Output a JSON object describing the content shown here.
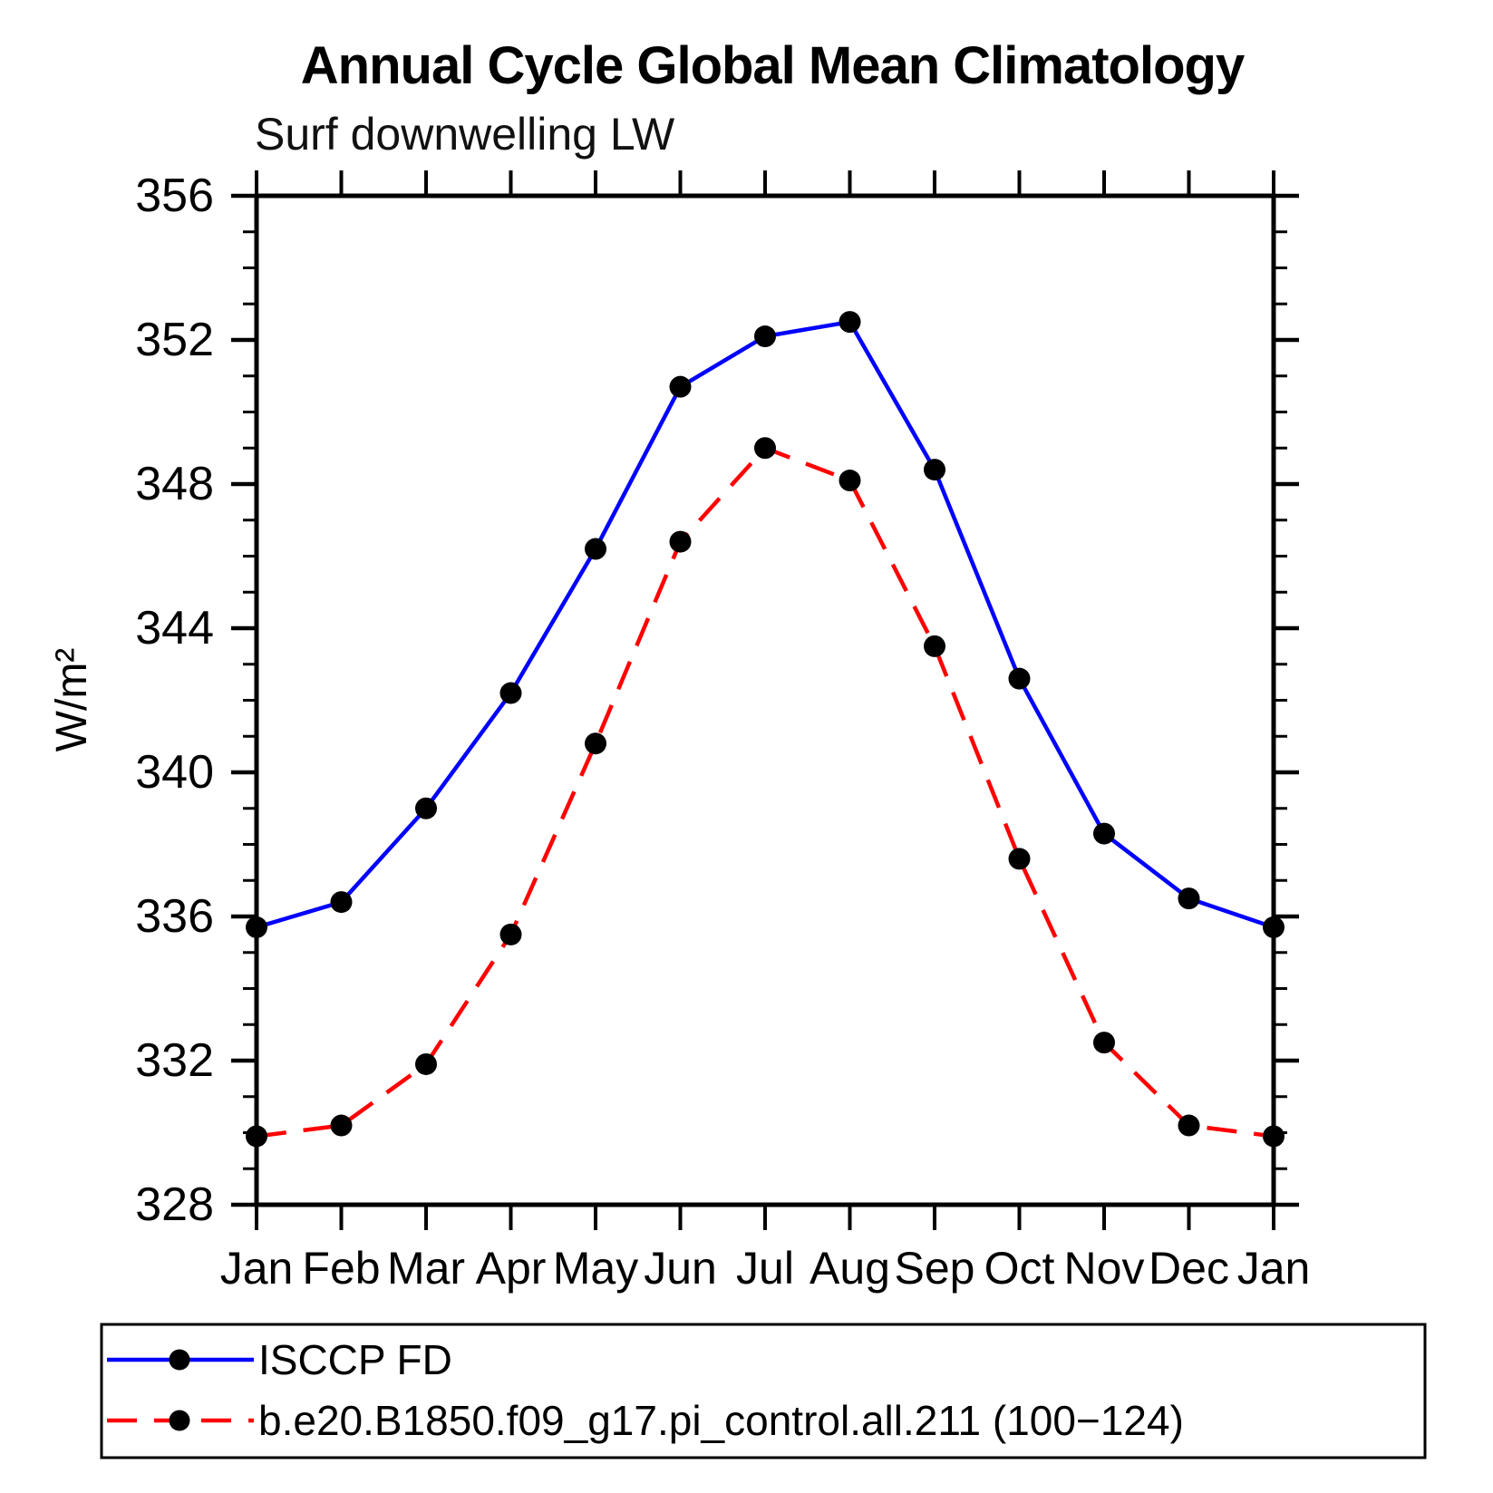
{
  "chart_data": {
    "type": "line",
    "title": "Annual Cycle Global Mean Climatology",
    "subtitle": "Surf downwelling LW",
    "ylabel": "W/m²",
    "xlabel": "",
    "x_categories": [
      "Jan",
      "Feb",
      "Mar",
      "Apr",
      "May",
      "Jun",
      "Jul",
      "Aug",
      "Sep",
      "Oct",
      "Nov",
      "Dec",
      "Jan"
    ],
    "ylim": [
      328,
      356
    ],
    "y_major_tick_step": 4,
    "y_minor_tick_step": 1,
    "y_major_tick_labels": [
      "328",
      "332",
      "336",
      "340",
      "344",
      "348",
      "352",
      "356"
    ],
    "grid": false,
    "legend_position": "bottom",
    "background_color": "#ffffff",
    "axis_color": "#000000",
    "series": [
      {
        "name": "ISCCP FD",
        "color": "#0000ff",
        "line_style": "solid",
        "marker": "circle",
        "marker_color": "#000000",
        "values": [
          335.7,
          336.4,
          339.0,
          342.2,
          346.2,
          350.7,
          352.1,
          352.5,
          348.4,
          342.6,
          338.3,
          336.5,
          335.7
        ]
      },
      {
        "name": "b.e20.B1850.f09_g17.pi_control.all.211 (100−124)",
        "color": "#ff0000",
        "line_style": "dashed",
        "marker": "circle",
        "marker_color": "#000000",
        "values": [
          329.9,
          330.2,
          331.9,
          335.5,
          340.8,
          346.4,
          349.0,
          348.1,
          343.5,
          337.6,
          332.5,
          330.2,
          329.9
        ]
      }
    ]
  }
}
